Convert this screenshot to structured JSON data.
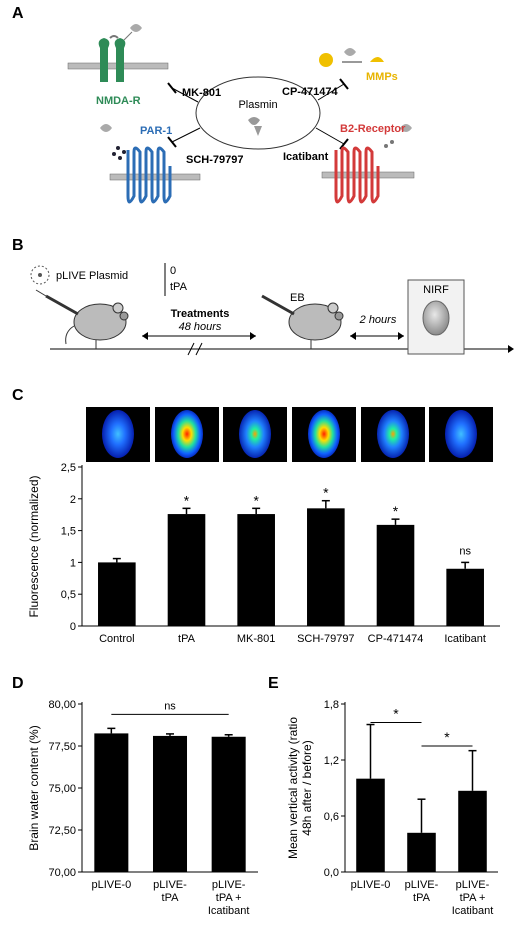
{
  "panels": {
    "a": {
      "letter": "A",
      "center": "Plasmin",
      "receptors": [
        "NMDA-R",
        "PAR-1",
        "MMPs",
        "B2-Receptor"
      ],
      "inhibitors": [
        "MK-801",
        "SCH-79797",
        "CP-471474",
        "Icatibant"
      ]
    },
    "b": {
      "letter": "B",
      "plasmid": "pLIVE Plasmid",
      "options": [
        "0",
        "tPA"
      ],
      "treatments": "Treatments",
      "treatments_time": "48 hours",
      "eb": "EB",
      "interval": "2 hours",
      "imaging": "NIRF"
    },
    "c": {
      "letter": "C"
    },
    "d": {
      "letter": "D"
    },
    "e": {
      "letter": "E"
    }
  },
  "chart_data": [
    {
      "id": "C",
      "type": "bar",
      "categories": [
        "Control",
        "tPA",
        "MK-801",
        "SCH-79797",
        "CP-471474",
        "Icatibant"
      ],
      "values": [
        1.0,
        1.76,
        1.76,
        1.85,
        1.59,
        0.9
      ],
      "errors": [
        0.06,
        0.09,
        0.09,
        0.12,
        0.09,
        0.1
      ],
      "annotations": [
        "",
        "*",
        "*",
        "*",
        "*",
        "ns"
      ],
      "ylabel": "Fluorescence (normalized)",
      "yticks": [
        "0",
        "0,5",
        "1",
        "1,5",
        "2",
        "2,5"
      ],
      "ylim": [
        0,
        2.5
      ]
    },
    {
      "id": "D",
      "type": "bar",
      "categories": [
        [
          "pLIVE-0"
        ],
        [
          "pLIVE-",
          "tPA"
        ],
        [
          "pLIVE-",
          "tPA +",
          "Icatibant"
        ]
      ],
      "values": [
        78.25,
        78.1,
        78.05
      ],
      "errors": [
        0.3,
        0.12,
        0.12
      ],
      "significance": "ns",
      "ylabel": "Brain water content (%)",
      "yticks": [
        "70,00",
        "72,50",
        "75,00",
        "77,50",
        "80,00"
      ],
      "ylim": [
        70,
        80
      ]
    },
    {
      "id": "E",
      "type": "bar",
      "categories": [
        [
          "pLIVE-0"
        ],
        [
          "pLIVE-",
          "tPA"
        ],
        [
          "pLIVE-",
          "tPA +",
          "Icatibant"
        ]
      ],
      "values": [
        1.0,
        0.42,
        0.87
      ],
      "errors": [
        0.58,
        0.36,
        0.43
      ],
      "significance": [
        "*",
        "*"
      ],
      "ylabel": [
        "Mean vertical activity (ratio",
        "48h after / before)"
      ],
      "yticks": [
        "0,0",
        "0,6",
        "1,2",
        "1,8"
      ],
      "ylim": [
        0,
        1.8
      ]
    }
  ]
}
